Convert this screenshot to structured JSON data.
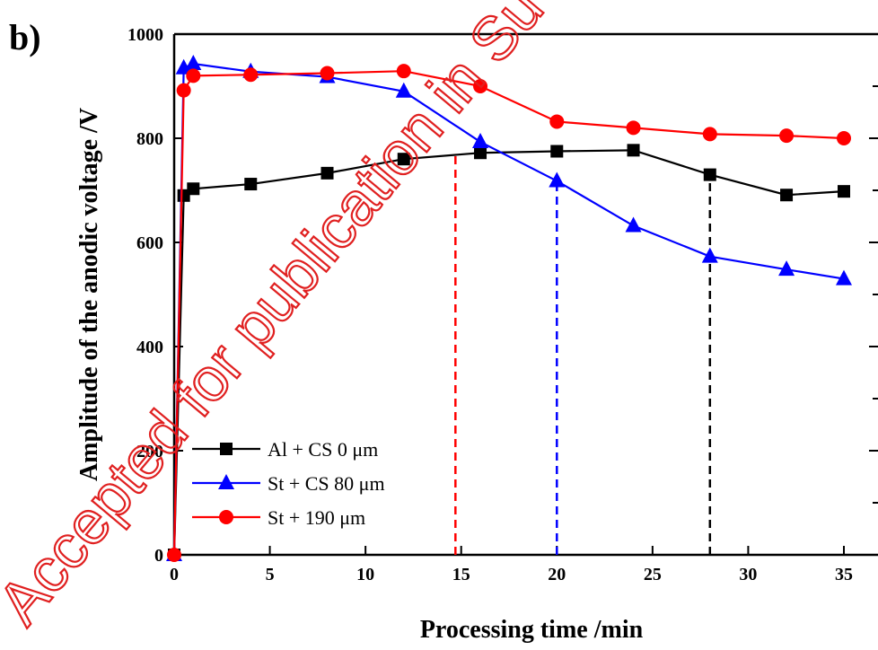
{
  "panel_label": "b)",
  "watermark": "Accepted for publication in Su",
  "chart_data": {
    "type": "line",
    "xlabel": "Processing time /min",
    "ylabel": "Amplitude of the anodic voltage /V",
    "xlim": [
      0,
      36
    ],
    "ylim": [
      0,
      1000
    ],
    "xticks": [
      "0",
      "5",
      "10",
      "15",
      "20",
      "25",
      "30",
      "35"
    ],
    "yticks": [
      "0",
      "200",
      "400",
      "600",
      "800",
      "1000"
    ],
    "grid": false,
    "legend_position": "bottom-left",
    "series": [
      {
        "name": "Al + CS 0 μm",
        "color": "#000000",
        "marker": "square",
        "x": [
          0,
          0.5,
          1,
          4,
          8,
          12,
          16,
          20,
          24,
          28,
          32,
          35
        ],
        "y": [
          0,
          690,
          703,
          712,
          733,
          760,
          772,
          775,
          777,
          730,
          691,
          698
        ]
      },
      {
        "name": "St + CS 80 μm",
        "color": "#0000ff",
        "marker": "triangle",
        "x": [
          0,
          0.5,
          1,
          4,
          8,
          12,
          16,
          20,
          24,
          28,
          32,
          35
        ],
        "y": [
          0,
          935,
          943,
          928,
          918,
          890,
          793,
          718,
          632,
          573,
          548,
          530
        ]
      },
      {
        "name": "St + 190 μm",
        "color": "#ff0000",
        "marker": "circle",
        "x": [
          0,
          0.5,
          1,
          4,
          8,
          12,
          16,
          20,
          24,
          28,
          32,
          35
        ],
        "y": [
          0,
          892,
          920,
          922,
          925,
          929,
          900,
          832,
          820,
          808,
          805,
          800
        ]
      }
    ],
    "reference_lines": [
      {
        "x": 14.7,
        "y_top": 770,
        "color": "#ff0000"
      },
      {
        "x": 20,
        "y_top": 718,
        "color": "#0000ff"
      },
      {
        "x": 28,
        "y_top": 730,
        "color": "#000000"
      }
    ]
  }
}
